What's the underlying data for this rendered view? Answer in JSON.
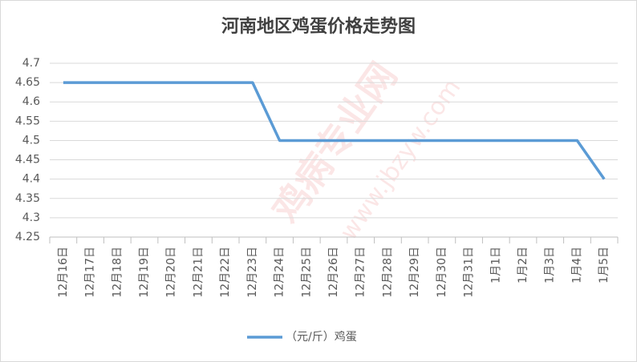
{
  "watermark": [
    "鸡病专业网",
    "www.jbzyw.com"
  ],
  "chart_data": {
    "type": "line",
    "title": "河南地区鸡蛋价格走势图",
    "categories": [
      "12月16日",
      "12月17日",
      "12月18日",
      "12月19日",
      "12月20日",
      "12月21日",
      "12月22日",
      "12月23日",
      "12月24日",
      "12月25日",
      "12月26日",
      "12月27日",
      "12月28日",
      "12月29日",
      "12月30日",
      "12月31日",
      "1月1日",
      "1月2日",
      "1月3日",
      "1月4日",
      "1月5日"
    ],
    "series": [
      {
        "name": "（元/斤）鸡蛋",
        "color": "#5b9bd5",
        "values": [
          4.65,
          4.65,
          4.65,
          4.65,
          4.65,
          4.65,
          4.65,
          4.65,
          4.5,
          4.5,
          4.5,
          4.5,
          4.5,
          4.5,
          4.5,
          4.5,
          4.5,
          4.5,
          4.5,
          4.5,
          4.4
        ]
      }
    ],
    "ylim": [
      4.25,
      4.7
    ],
    "yticks": [
      4.25,
      4.3,
      4.35,
      4.4,
      4.45,
      4.5,
      4.55,
      4.6,
      4.65,
      4.7
    ],
    "grid": true,
    "legend": "bottom"
  }
}
